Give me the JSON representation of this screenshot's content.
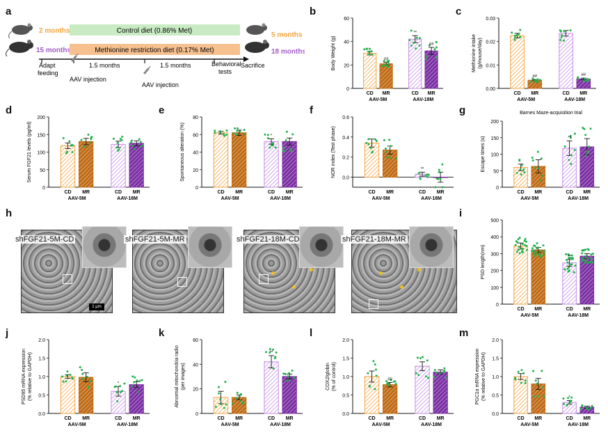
{
  "panel_labels": [
    "a",
    "b",
    "c",
    "d",
    "e",
    "f",
    "g",
    "h",
    "i",
    "j",
    "k",
    "l",
    "m"
  ],
  "schematic": {
    "age_young": "2 months",
    "age_old": "15 months",
    "end_young": "5 months",
    "end_old": "18 months",
    "control_diet": "Control diet (0.86% Met)",
    "mr_diet": "Methionine restriction diet (0.17% Met)",
    "adapt_feeding": "Adapt\nfeeding",
    "interval_1": "1.5 months",
    "interval_2": "1.5 months",
    "aav_1": "AAV injection",
    "aav_2": "AAV injection",
    "behavioral": "Behavioral\ntests",
    "sacrifice": "Sacrifice",
    "colors": {
      "young": "#f5a440",
      "old": "#a05cc8",
      "control_bar": "#c8ebc3",
      "mr_bar": "#f6c08f"
    }
  },
  "em": {
    "titles": [
      "shFGF21-5M-CD",
      "shFGF21-5M-MR",
      "shFGF21-18M-CD",
      "shFGF21-18M-MR"
    ],
    "scale_bar": "1 μm"
  },
  "colors": {
    "cd_young": "#f5a440",
    "mr_young": "#c06a14",
    "cd_old": "#c58ce6",
    "mr_old": "#7b2fa3",
    "dots": "#22b14c"
  },
  "chart_data": [
    {
      "id": "b",
      "type": "bar",
      "ylabel": "Body Weight (g)",
      "ylim": [
        0,
        60
      ],
      "yticks": [
        0,
        20,
        40,
        60
      ],
      "categories": [
        "CD",
        "MR",
        "CD",
        "MR"
      ],
      "groups": [
        "AAV-5M",
        "AAV-18M"
      ],
      "values": [
        30,
        21,
        42,
        32
      ],
      "errors": [
        1.5,
        1.2,
        3,
        3
      ],
      "annotations": [
        "",
        "##",
        "**",
        "##"
      ]
    },
    {
      "id": "c",
      "type": "bar",
      "ylabel": "Methionine intake\n(g/mouse/day)",
      "ylim": [
        0,
        0.03
      ],
      "yticks": [
        0.0,
        0.01,
        0.02,
        0.03
      ],
      "yticklabels": [
        "0.00",
        "0.01",
        "0.02",
        "0.03"
      ],
      "categories": [
        "CD",
        "MR",
        "CD",
        "MR"
      ],
      "groups": [
        "AAV-5M",
        "AAV-18M"
      ],
      "values": [
        0.0225,
        0.0035,
        0.0235,
        0.004
      ],
      "errors": [
        0.001,
        0.0003,
        0.0012,
        0.0004
      ],
      "annotations": [
        "",
        "##",
        "",
        "##"
      ]
    },
    {
      "id": "d",
      "type": "bar",
      "ylabel": "Serum FGF21 levels (pg/ml)",
      "ylim": [
        0,
        200
      ],
      "yticks": [
        0,
        50,
        100,
        150,
        200
      ],
      "categories": [
        "CD",
        "MR",
        "CD",
        "MR"
      ],
      "groups": [
        "AAV-5M",
        "AAV-18M"
      ],
      "values": [
        118,
        130,
        122,
        125
      ],
      "errors": [
        8,
        9,
        9,
        7
      ],
      "annotations": [
        "",
        "",
        "",
        ""
      ]
    },
    {
      "id": "e",
      "type": "bar",
      "ylabel": "Spontaneous alteration (%)",
      "ylim": [
        0,
        80
      ],
      "yticks": [
        0,
        20,
        40,
        60,
        80
      ],
      "categories": [
        "CD",
        "MR",
        "CD",
        "MR"
      ],
      "groups": [
        "AAV-5M",
        "AAV-18M"
      ],
      "values": [
        62,
        62,
        52,
        52
      ],
      "errors": [
        1.5,
        3,
        3,
        4
      ],
      "annotations": [
        "",
        "",
        "*",
        ""
      ]
    },
    {
      "id": "f",
      "type": "bar",
      "ylabel": "NOR index (Test phase)",
      "ylim": [
        -0.1,
        0.6
      ],
      "yticks": [
        0.0,
        0.2,
        0.4,
        0.6
      ],
      "yticklabels": [
        "0.0",
        "0.2",
        "0.4",
        "0.6"
      ],
      "categories": [
        "CD",
        "MR",
        "CD",
        "MR"
      ],
      "groups": [
        "AAV-5M",
        "AAV-18M"
      ],
      "values": [
        0.34,
        0.27,
        0.03,
        0.0
      ],
      "errors": [
        0.04,
        0.04,
        0.02,
        0.05
      ],
      "annotations": [
        "",
        "",
        "**",
        ""
      ]
    },
    {
      "id": "g",
      "type": "bar",
      "title": "Barnes Maze-acquisition trial",
      "ylabel": "Escape times (s)",
      "ylim": [
        0,
        200
      ],
      "yticks": [
        0,
        50,
        100,
        150,
        200
      ],
      "categories": [
        "CD",
        "MR",
        "CD",
        "MR"
      ],
      "groups": [
        "AAV-5M",
        "AAV-18M"
      ],
      "values": [
        60,
        63,
        118,
        122
      ],
      "errors": [
        10,
        20,
        22,
        25
      ],
      "annotations": [
        "",
        "",
        "**",
        ""
      ]
    },
    {
      "id": "i",
      "type": "bar",
      "ylabel": "PSD length(nm)",
      "ylim": [
        0,
        500
      ],
      "yticks": [
        0,
        100,
        200,
        300,
        400,
        500
      ],
      "categories": [
        "CD",
        "MR",
        "CD",
        "MR"
      ],
      "groups": [
        "AAV-5M",
        "AAV-18M"
      ],
      "values": [
        345,
        322,
        245,
        285
      ],
      "errors": [
        18,
        15,
        20,
        15
      ],
      "annotations": [
        "",
        "",
        "**",
        ""
      ]
    },
    {
      "id": "j",
      "type": "bar",
      "ylabel": "PSD95 mRNA expression\n(% relative to GAPDH)",
      "ylim": [
        0,
        2.0
      ],
      "yticks": [
        0,
        0.5,
        1.0,
        1.5,
        2.0
      ],
      "yticklabels": [
        "0.0",
        "0.5",
        "1.0",
        "1.5",
        "2.0"
      ],
      "categories": [
        "CD",
        "MR",
        "CD",
        "MR"
      ],
      "groups": [
        "AAV-5M",
        "AAV-18M"
      ],
      "values": [
        1.0,
        0.98,
        0.6,
        0.78
      ],
      "errors": [
        0.05,
        0.12,
        0.13,
        0.08
      ],
      "annotations": [
        "",
        "",
        "*",
        ""
      ]
    },
    {
      "id": "k",
      "type": "bar",
      "ylabel": "Abnormal mitochondria radio\n(per images)",
      "ylim": [
        0,
        60
      ],
      "yticks": [
        0,
        20,
        40,
        60
      ],
      "categories": [
        "CD",
        "MR",
        "CD",
        "MR"
      ],
      "groups": [
        "AAV-5M",
        "AAV-18M"
      ],
      "values": [
        13,
        13,
        42,
        30
      ],
      "errors": [
        5,
        2,
        5,
        2
      ],
      "annotations": [
        "",
        "",
        "**",
        ""
      ]
    },
    {
      "id": "l",
      "type": "bar",
      "ylabel": "COX2/globin\n(% of control)",
      "ylim": [
        0,
        2.0
      ],
      "yticks": [
        0,
        0.5,
        1.0,
        1.5,
        2.0
      ],
      "yticklabels": [
        "0.0",
        "0.5",
        "1.0",
        "1.5",
        "2.0"
      ],
      "categories": [
        "CD",
        "MR",
        "CD",
        "MR"
      ],
      "groups": [
        "AAV-5M",
        "AAV-18M"
      ],
      "values": [
        1.0,
        0.78,
        1.28,
        1.12
      ],
      "errors": [
        0.15,
        0.06,
        0.12,
        0.06
      ],
      "annotations": [
        "",
        "##",
        "",
        ""
      ]
    },
    {
      "id": "m",
      "type": "bar",
      "ylabel": "PGC1α mRNA expression\n(% relative to GAPDH)",
      "ylim": [
        0,
        2.0
      ],
      "yticks": [
        0,
        0.5,
        1.0,
        1.5,
        2.0
      ],
      "yticklabels": [
        "0.0",
        "0.5",
        "1.0",
        "1.5",
        "2.0"
      ],
      "categories": [
        "CD",
        "MR",
        "CD",
        "MR"
      ],
      "groups": [
        "AAV-5M",
        "AAV-18M"
      ],
      "values": [
        1.0,
        0.8,
        0.3,
        0.17
      ],
      "errors": [
        0.08,
        0.15,
        0.05,
        0.03
      ],
      "annotations": [
        "",
        "",
        "*",
        ""
      ]
    }
  ]
}
